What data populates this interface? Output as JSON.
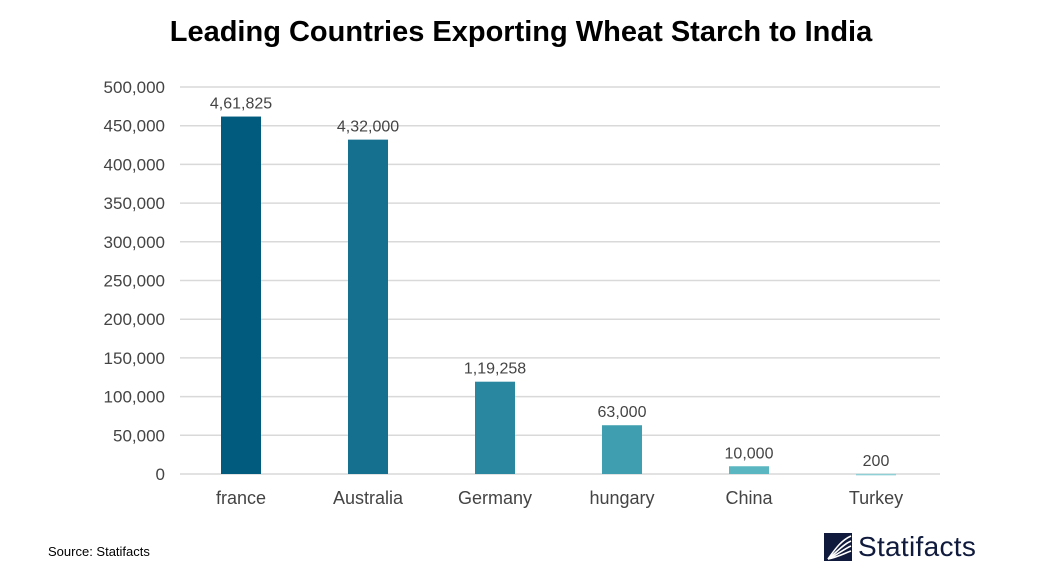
{
  "chart_data": {
    "type": "bar",
    "title": "Leading Countries Exporting Wheat Starch to India",
    "categories": [
      "france",
      "Australia",
      "Germany",
      "hungary",
      "China",
      "Turkey"
    ],
    "values": [
      461825,
      432000,
      119258,
      63000,
      10000,
      200
    ],
    "data_labels": [
      "4,61,825",
      "4,32,000",
      "1,19,258",
      "63,000",
      "10,000",
      "200"
    ],
    "colors": [
      "#005b7f",
      "#15708f",
      "#2a87a0",
      "#3f9fb0",
      "#5ab6c0",
      "#8fd0d6"
    ],
    "yticks": [
      0,
      50000,
      100000,
      150000,
      200000,
      250000,
      300000,
      350000,
      400000,
      450000,
      500000
    ],
    "ytick_labels": [
      "0",
      "50,000",
      "100,000",
      "150,000",
      "200,000",
      "250,000",
      "300,000",
      "350,000",
      "400,000",
      "450,000",
      "500,000"
    ],
    "ylim": [
      0,
      500000
    ],
    "xlabel": "",
    "ylabel": "",
    "grid": true,
    "legend": "none"
  },
  "footer": {
    "source": "Source: Statifacts",
    "logo_text": "Statifacts"
  }
}
